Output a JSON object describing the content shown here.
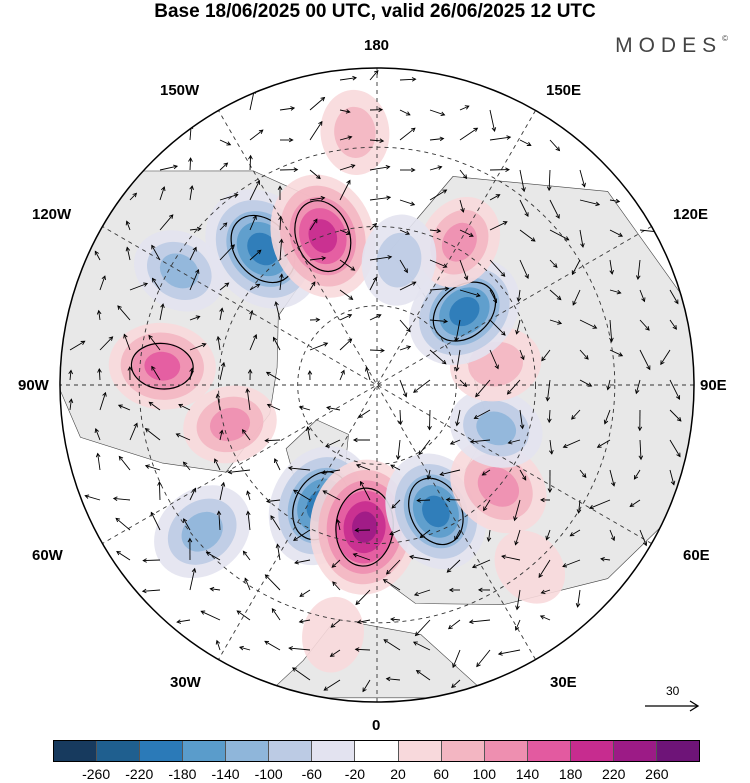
{
  "title": "Base 18/06/2025 00 UTC, valid 26/06/2025 12 UTC",
  "brand": "MODES",
  "brand_mark": "©",
  "longitude_labels": {
    "top": "180",
    "bottom": "0",
    "left": "90W",
    "right": "90E",
    "upper_left_1": "150W",
    "upper_left_2": "120W",
    "upper_right_1": "150E",
    "upper_right_2": "120E",
    "lower_left_1": "60W",
    "lower_left_2": "30W",
    "lower_right_1": "60E",
    "lower_right_2": "30E"
  },
  "reference_vector": {
    "value": "30",
    "icon": "arrow-right-icon"
  },
  "colorbar": {
    "ticks": [
      "-260",
      "-220",
      "-180",
      "-140",
      "-100",
      "-60",
      "-20",
      "20",
      "60",
      "100",
      "140",
      "180",
      "220",
      "260"
    ],
    "colors": [
      "#173a5e",
      "#1f5f8f",
      "#2b7ab8",
      "#5a9ccb",
      "#8fb6da",
      "#bccbe4",
      "#e3e3f0",
      "#ffffff",
      "#f8d9dc",
      "#f3b6c2",
      "#ee8fb0",
      "#e35aa0",
      "#c72c8f",
      "#9c1b86",
      "#6e1478"
    ]
  },
  "map": {
    "projection": "north-polar-stereographic",
    "field": "anomaly",
    "land_color": "#e8e8e8",
    "anomaly_blobs": [
      {
        "lon": -140,
        "dist": 0.56,
        "value": -230
      },
      {
        "lon": -160,
        "dist": 0.5,
        "value": 220
      },
      {
        "lon": -120,
        "dist": 0.72,
        "value": -120
      },
      {
        "lon": -95,
        "dist": 0.68,
        "value": 160
      },
      {
        "lon": -75,
        "dist": 0.48,
        "value": 120
      },
      {
        "lon": -50,
        "dist": 0.72,
        "value": -150
      },
      {
        "lon": -25,
        "dist": 0.42,
        "value": -210
      },
      {
        "lon": -5,
        "dist": 0.45,
        "value": 250
      },
      {
        "lon": 25,
        "dist": 0.44,
        "value": -200
      },
      {
        "lon": 50,
        "dist": 0.5,
        "value": 150
      },
      {
        "lon": 70,
        "dist": 0.4,
        "value": -120
      },
      {
        "lon": 100,
        "dist": 0.38,
        "value": 110
      },
      {
        "lon": 130,
        "dist": 0.36,
        "value": -200
      },
      {
        "lon": 150,
        "dist": 0.52,
        "value": 120
      },
      {
        "lon": 170,
        "dist": 0.4,
        "value": -110
      },
      {
        "lon": -175,
        "dist": 0.8,
        "value": 90
      },
      {
        "lon": 40,
        "dist": 0.75,
        "value": 70
      },
      {
        "lon": -10,
        "dist": 0.8,
        "value": 60
      }
    ]
  }
}
